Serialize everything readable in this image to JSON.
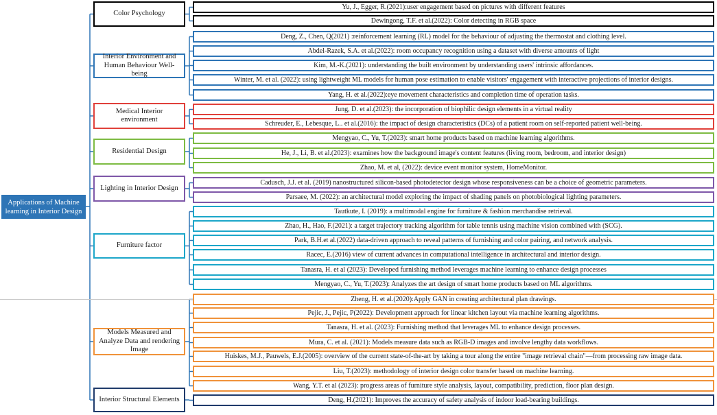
{
  "root": {
    "label": "Applications of Machine learning in Interior Design",
    "color": "#2e75b6"
  },
  "connector_color": "#2e75b6",
  "categories": [
    {
      "id": "color-psychology",
      "label": "Color Psychology",
      "color": "#000000",
      "items": [
        "Yu, J., Egger, R.(2021):user engagement based on pictures with different features",
        "Dewingong, T.F. et al.(2022): Color detecting in RGB space"
      ]
    },
    {
      "id": "interior-environment",
      "label": "Interior Environment and Human Behaviour Well-being",
      "color": "#2e75b6",
      "items": [
        "Deng, Z., Chen, Q(2021) :reinforcement learning (RL) model for the behaviour of adjusting the thermostat and clothing level.",
        "Abdel-Razek, S.A. et al.(2022): room occupancy recognition using a dataset with diverse amounts of light",
        "Kim, M.-K.(2021): understanding the built environment by understanding users' intrinsic affordances.",
        "Winter, M. et al. (2022): using lightweight ML models for human pose estimation to enable visitors' engagement with interactive projections of interior designs.",
        "Yang, H. et al.(2022):eye movement characteristics and completion time of operation tasks."
      ]
    },
    {
      "id": "medical-interior",
      "label": "Medical Interior environment",
      "color": "#e0403a",
      "items": [
        "Jung, D. et al.(2023): the incorporation of biophilic design elements in a virtual reality",
        "Schreuder, E., Lebesque, L.. et al.(2016): the impact of design characteristics (DCs) of a patient room on self-reported patient well-being."
      ]
    },
    {
      "id": "residential-design",
      "label": "Residential Design",
      "color": "#7dbb42",
      "items": [
        "Mengyao, C., Yu, T.(2023): smart home products based on machine learning algorithms.",
        "He, J., Li, B. et al.(2023): examines how the background image's content features (living room, bedroom, and interior design)",
        "Zhao, M. et al, (2022): device event monitor system, HomeMonitor."
      ]
    },
    {
      "id": "lighting",
      "label": "Lighting in Interior Design",
      "color": "#7e57a8",
      "items": [
        "Cadusch, J.J. et al. (2019) nanostructured silicon-based photodetector design whose responsiveness can be a choice of geometric parameters.",
        "Parsaee, M. (2022): an architectural model exploring the impact of shading panels on photobiological lighting parameters."
      ]
    },
    {
      "id": "furniture",
      "label": "Furniture factor",
      "color": "#1ba6c9",
      "items": [
        "Tautkute, I. (2019):  a multimodal engine for furniture & fashion merchandise retrieval.",
        "Zhao, H., Hao, F.(2021): a target trajectory tracking algorithm for table tennis using machine vision combined with (SCG).",
        "Park, B.H.et al.(2022)  data-driven approach to reveal patterns of furnishing and color pairing, and network analysis.",
        "Racec, E.(2016) view of current advances in computational intelligence in architectural and interior design.",
        "Tanasra, H. et al (2023): Developed furnishing method leverages machine learning to enhance design processes",
        "Mengyao, C., Yu, T.(2023): Analyzes the art design of smart home products based on ML algorithms."
      ]
    },
    {
      "id": "models-measured",
      "label": "Models Measured and Analyze Data and rendering Image",
      "color": "#f0923a",
      "items": [
        "Zheng, H. et al.(2020):Apply GAN in creating architectural plan drawings.",
        "Pejic, J., Pejic, P(2022): Development approach for linear kitchen layout via machine learning algorithms.",
        "Tanasra, H. et al. (2023): Furnishing method that leverages ML to enhance design processes.",
        "Mura, C. et al. (2021): Models measure data such as RGB-D images and involve lengthy data workflows.",
        "Huiskes, M.J., Pauwels, E.J.(2005): overview of the current state-of-the-art by taking a tour along the entire \"image retrieval chain\"—from processing raw image data.",
        "Liu, T.(2023): methodology of interior design color transfer based on machine learning.",
        "Wang, Y.T. et al (2023): progress areas of furniture style analysis, layout, compatibility, prediction, floor plan design."
      ]
    },
    {
      "id": "structural",
      "label": "Interior Structural Elements",
      "color": "#1f3a6b",
      "items": [
        "Deng, H.(2021): Improves the accuracy of safety analysis of indoor load-bearing buildings."
      ]
    }
  ]
}
